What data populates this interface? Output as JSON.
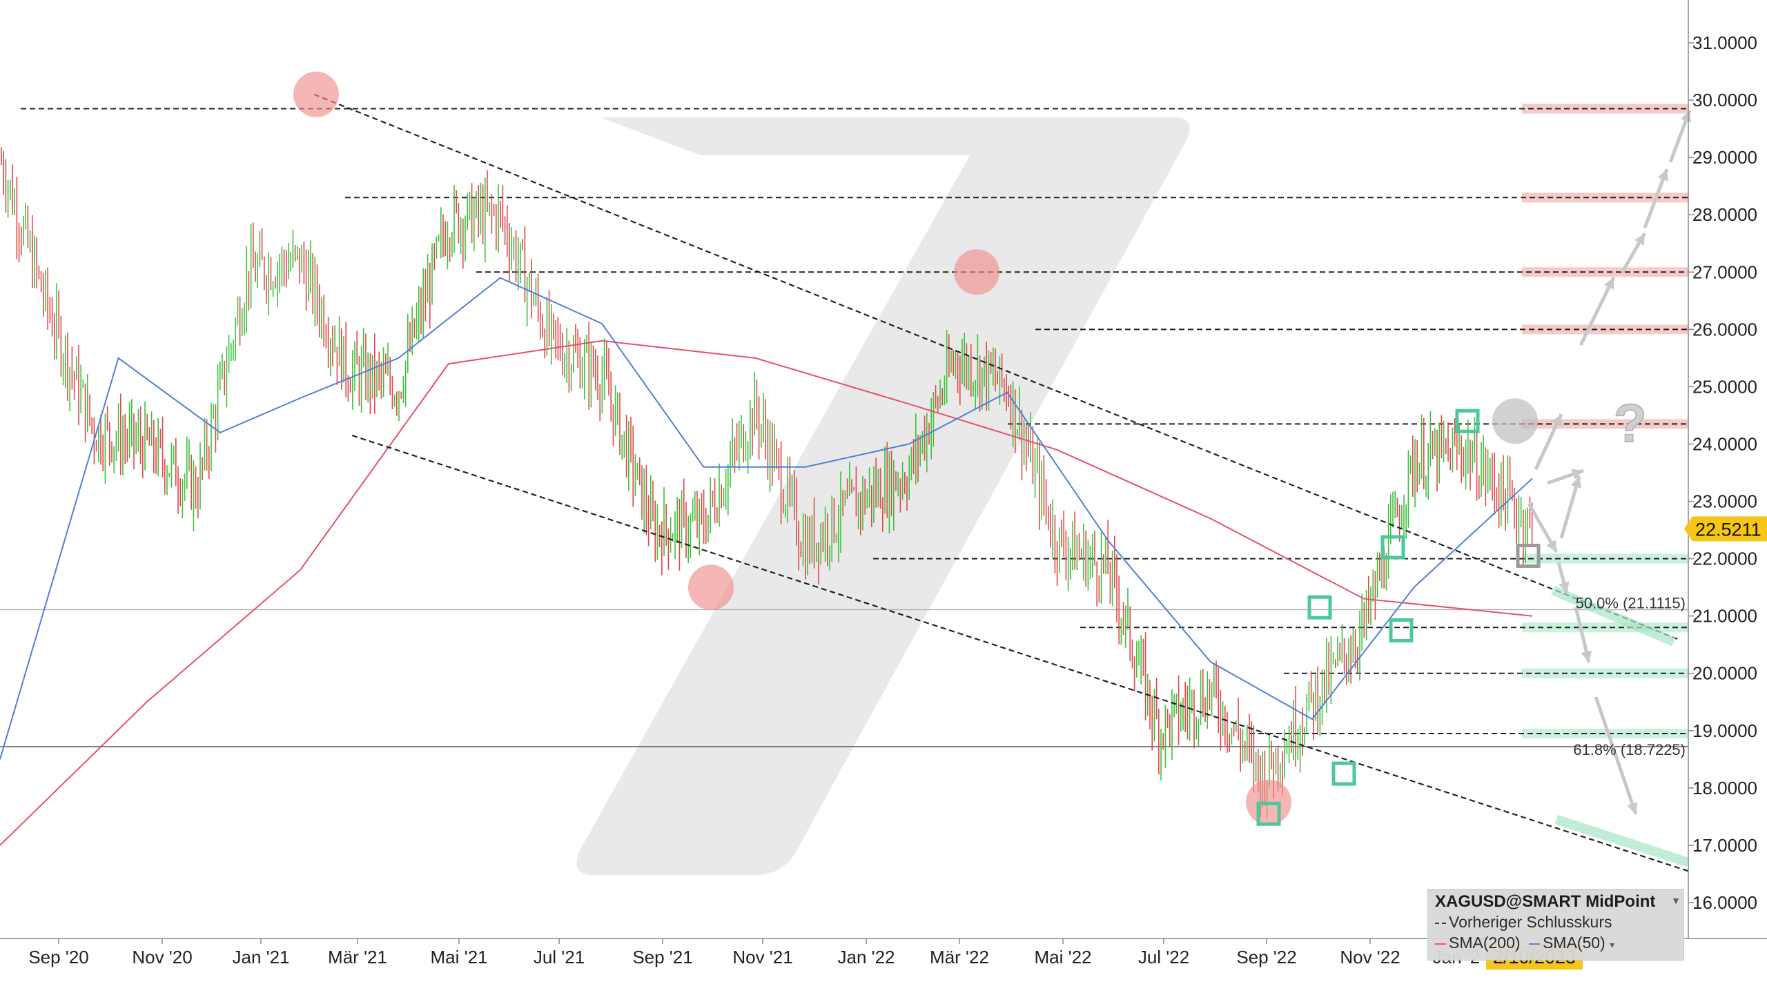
{
  "colors": {
    "sma200": "#e8506a",
    "sma50": "#4f7fd8",
    "price_up": "#3cc23c",
    "price_down": "#e0484a",
    "price_badge": "#f5c518",
    "resistance_band": "#f4b3b3",
    "support_band": "#a8e6c8",
    "marker_red": "#f08f8f",
    "marker_green": "#4ec79a",
    "dashed": "#222222",
    "watermark": "#e5e5e5"
  },
  "chart_data": {
    "type": "line",
    "title": "",
    "xlabel": "",
    "ylabel": "",
    "ylim": [
      15.2,
      31.5
    ],
    "y_ticks": [
      "16.0000",
      "17.0000",
      "18.0000",
      "19.0000",
      "20.0000",
      "21.0000",
      "22.0000",
      "23.0000",
      "24.0000",
      "25.0000",
      "26.0000",
      "27.0000",
      "28.0000",
      "29.0000",
      "30.0000",
      "31.0000"
    ],
    "x_ticks": [
      "Sep '20",
      "Nov '20",
      "Jan '21",
      "Mär '21",
      "Mai '21",
      "Jul '21",
      "Sep '21",
      "Nov '21",
      "Jan '22",
      "Mär '22",
      "Mai '22",
      "Jul '22",
      "Sep '22",
      "Nov '22",
      "Jan '2"
    ],
    "current_date_label": "2/10/2023",
    "last_price_label": "22.5211",
    "last_price": 22.52,
    "fib_labels": [
      {
        "text": "50.0% (21.1115)",
        "value": 21.1115
      },
      {
        "text": "61.8% (18.7225)",
        "value": 18.7225
      }
    ],
    "resistance_levels": [
      29.85,
      28.3,
      27.0,
      26.0,
      24.35
    ],
    "support_levels": [
      22.0,
      20.8,
      20.0,
      18.95
    ],
    "series": [
      {
        "name": "Kurs",
        "x": [
          "2020-08-05",
          "2020-09-01",
          "2020-10-01",
          "2020-11-01",
          "2020-12-01",
          "2021-01-01",
          "2021-02-01",
          "2021-03-01",
          "2021-04-01",
          "2021-05-01",
          "2021-06-01",
          "2021-07-01",
          "2021-08-01",
          "2021-09-01",
          "2021-10-01",
          "2021-11-01",
          "2021-12-01",
          "2022-01-01",
          "2022-02-01",
          "2022-03-01",
          "2022-04-01",
          "2022-05-01",
          "2022-06-01",
          "2022-07-01",
          "2022-08-01",
          "2022-09-01",
          "2022-10-01",
          "2022-11-01",
          "2022-12-01",
          "2023-01-01",
          "2023-02-10"
        ],
        "values": [
          29.0,
          26.5,
          24.2,
          24.0,
          23.2,
          27.0,
          27.2,
          25.3,
          25.0,
          27.9,
          28.0,
          25.8,
          25.2,
          22.5,
          22.6,
          24.6,
          22.2,
          23.0,
          23.5,
          25.5,
          25.0,
          22.3,
          21.8,
          19.0,
          19.7,
          18.2,
          19.5,
          20.8,
          23.7,
          23.9,
          22.52
        ]
      },
      {
        "name": "SMA(200)",
        "x": [
          "2020-08-05",
          "2020-11-01",
          "2021-02-01",
          "2021-05-01",
          "2021-08-01",
          "2021-11-01",
          "2022-02-01",
          "2022-05-01",
          "2022-08-01",
          "2022-11-01",
          "2023-02-10"
        ],
        "values": [
          17.0,
          19.5,
          21.8,
          25.4,
          25.8,
          25.5,
          24.7,
          23.9,
          22.7,
          21.3,
          21.0
        ]
      },
      {
        "name": "SMA(50)",
        "x": [
          "2020-08-05",
          "2020-10-15",
          "2020-12-15",
          "2021-02-01",
          "2021-04-01",
          "2021-06-01",
          "2021-08-01",
          "2021-10-01",
          "2021-12-01",
          "2022-02-01",
          "2022-04-01",
          "2022-06-01",
          "2022-08-01",
          "2022-10-01",
          "2022-12-01",
          "2023-02-10"
        ],
        "values": [
          18.5,
          25.5,
          24.2,
          24.8,
          25.5,
          26.9,
          26.1,
          23.6,
          23.6,
          24.0,
          24.9,
          22.3,
          20.2,
          19.2,
          21.5,
          23.4
        ]
      }
    ],
    "legend": {
      "title": "XAGUSD@SMART MidPoint",
      "items": [
        "Vorheriger Schlusskurs",
        "SMA(200)",
        "SMA(50)"
      ]
    }
  }
}
